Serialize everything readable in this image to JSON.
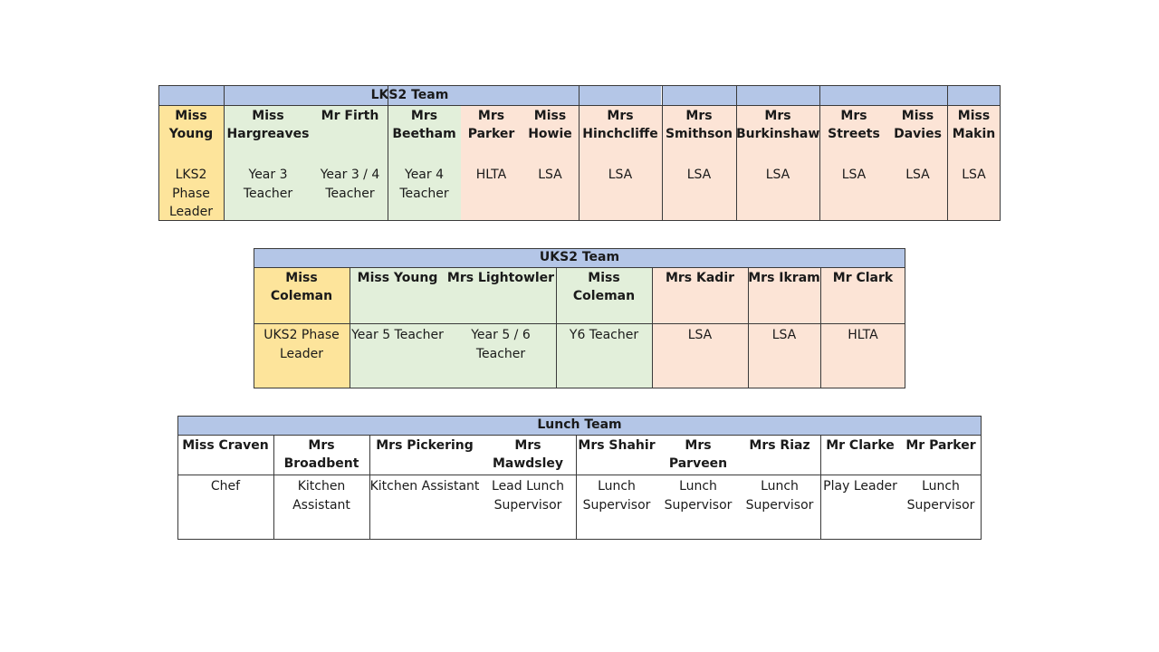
{
  "lks2": {
    "title": "LKS2 Team",
    "members": [
      {
        "name": "Miss Young",
        "role": "LKS2 Phase Leader"
      },
      {
        "name": "Miss Hargreaves",
        "role": "Year 3 Teacher"
      },
      {
        "name": "Mr Firth",
        "role": "Year 3 / 4 Teacher"
      },
      {
        "name": "Mrs Beetham",
        "role": "Year 4 Teacher"
      },
      {
        "name": "Mrs Parker",
        "role": "HLTA"
      },
      {
        "name": "Miss Howie",
        "role": "LSA"
      },
      {
        "name": "Mrs Hinchcliffe",
        "role": "LSA"
      },
      {
        "name": "Mrs Smithson",
        "role": "LSA"
      },
      {
        "name": "Mrs Burkinshaw",
        "role": "LSA"
      },
      {
        "name": "Mrs Streets",
        "role": "LSA"
      },
      {
        "name": "Miss Davies",
        "role": "LSA"
      },
      {
        "name": "Miss Makin",
        "role": "LSA"
      }
    ]
  },
  "uks2": {
    "title": "UKS2 Team",
    "members": [
      {
        "name": "Miss Coleman",
        "role": "UKS2 Phase Leader"
      },
      {
        "name": "Miss Young",
        "role": "Year 5 Teacher"
      },
      {
        "name": "Mrs Lightowler",
        "role": "Year 5 / 6 Teacher"
      },
      {
        "name": "Miss Coleman",
        "role": "Y6 Teacher"
      },
      {
        "name": "Mrs Kadir",
        "role": "LSA"
      },
      {
        "name": "Mrs Ikram",
        "role": "LSA"
      },
      {
        "name": "Mr Clark",
        "role": "HLTA"
      }
    ]
  },
  "lunch": {
    "title": "Lunch Team",
    "members": [
      {
        "name": "Miss Craven",
        "role": "Chef"
      },
      {
        "name": "Mrs Broadbent",
        "role": "Kitchen Assistant"
      },
      {
        "name": "Mrs Pickering",
        "role": "Kitchen Assistant"
      },
      {
        "name": "Mrs Mawdsley",
        "role": "Lead Lunch Supervisor"
      },
      {
        "name": "Mrs Shahir",
        "role": "Lunch Supervisor"
      },
      {
        "name": "Mrs Parveen",
        "role": "Lunch Supervisor"
      },
      {
        "name": "Mrs Riaz",
        "role": "Lunch Supervisor"
      },
      {
        "name": "Mr Clarke",
        "role": "Play Leader"
      },
      {
        "name": "Mr Parker",
        "role": "Lunch Supervisor"
      }
    ]
  },
  "colors": {
    "header": "#b4c6e7",
    "phase_leader": "#fde49b",
    "teacher": "#e2efda",
    "support": "#fce4d6",
    "border": "#3a3a3a"
  }
}
